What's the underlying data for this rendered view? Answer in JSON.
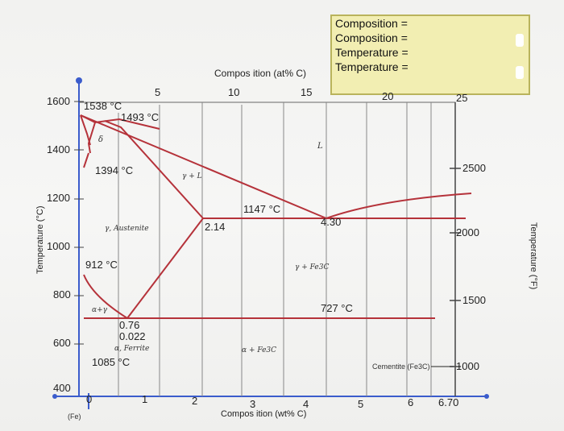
{
  "info_box": {
    "line1": "Composition =",
    "line2": "Composition =",
    "line3": "Temperature =",
    "line4": "Temperature ="
  },
  "axes": {
    "top_title": "Compos ition (at% C)",
    "top_ticks": [
      "5",
      "10",
      "15",
      "20",
      "25"
    ],
    "left_title": "Temperature (°C)",
    "left_ticks": [
      "1600",
      "1400",
      "1200",
      "1000",
      "800",
      "600",
      "400"
    ],
    "right_title": "Temperature (°F)",
    "right_ticks": [
      "2500",
      "2000",
      "1500",
      "1000"
    ],
    "bottom_title": "Compos ition (wt% C)",
    "bottom_ticks": [
      "0",
      "1",
      "2",
      "3",
      "4",
      "5",
      "6",
      "6.70"
    ],
    "fe_label": "(Fe)"
  },
  "annotations": {
    "t1538": "1538 °C",
    "t1493": "1493 °C",
    "t1394": "1394 °C",
    "t1147": "1147 °C",
    "c214": "2.14",
    "c430": "4.30",
    "t912": "912 °C",
    "t727": "727 °C",
    "c076": "0.76",
    "c0022": "0.022",
    "t1085": "1085 °C"
  },
  "regions": {
    "liquid": "L",
    "delta": "δ",
    "gamma_l": "γ + L",
    "austenite": "γ, Austenite",
    "gamma_fe3c": "γ + Fe3C",
    "alpha_gamma": "α+γ",
    "ferrite": "α, Ferrite",
    "alpha_fe3c": "α + Fe3C",
    "cementite": "Cementite (Fe3C)"
  },
  "colors": {
    "boundary": "#b5323a",
    "axis_blue": "#3b5ccc",
    "info_box_fill": "#f2eeb2"
  }
}
